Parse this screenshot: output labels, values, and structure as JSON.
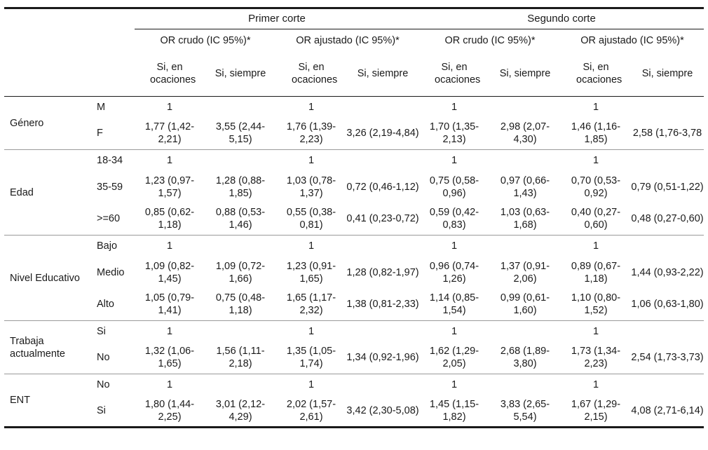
{
  "header": {
    "cortes": [
      "Primer corte",
      "Segundo corte"
    ],
    "measures": [
      "OR crudo (IC 95%)*",
      "OR ajustado (IC 95%)*",
      "OR crudo (IC 95%)*",
      "OR ajustado (IC 95%)*"
    ],
    "sub_a": "Si, en ocaciones",
    "sub_b": "Si, siempre"
  },
  "groups": [
    {
      "label": "Género",
      "rows": [
        {
          "cat": "M",
          "cells": [
            "1",
            "",
            "1",
            "",
            "1",
            "",
            "1",
            ""
          ]
        },
        {
          "cat": "F",
          "cells": [
            "1,77 (1,42-2,21)",
            "3,55 (2,44-5,15)",
            "1,76 (1,39-2,23)",
            "3,26 (2,19-4,84)",
            "1,70 (1,35-2,13)",
            "2,98 (2,07-4,30)",
            "1,46 (1,16-1,85)",
            "2,58 (1,76-3,78"
          ]
        }
      ]
    },
    {
      "label": "Edad",
      "rows": [
        {
          "cat": "18-34",
          "cells": [
            "1",
            "",
            "1",
            "",
            "1",
            "",
            "1",
            ""
          ]
        },
        {
          "cat": "35-59",
          "cells": [
            "1,23 (0,97-1,57)",
            "1,28 (0,88-1,85)",
            "1,03 (0,78-1,37)",
            "0,72 (0,46-1,12)",
            "0,75 (0,58-0,96)",
            "0,97 (0,66-1,43)",
            "0,70 (0,53-0,92)",
            "0,79 (0,51-1,22)"
          ]
        },
        {
          "cat": ">=60",
          "cells": [
            "0,85 (0,62-1,18)",
            "0,88 (0,53-1,46)",
            "0,55 (0,38-0,81)",
            "0,41 (0,23-0,72)",
            "0,59 (0,42-0,83)",
            "1,03 (0,63-1,68)",
            "0,40 (0,27-0,60)",
            "0,48 (0,27-0,60)"
          ]
        }
      ]
    },
    {
      "label": "Nivel Educativo",
      "rows": [
        {
          "cat": "Bajo",
          "cells": [
            "1",
            "",
            "1",
            "",
            "1",
            "",
            "1",
            ""
          ]
        },
        {
          "cat": "Medio",
          "cells": [
            "1,09 (0,82-1,45)",
            "1,09 (0,72-1,66)",
            "1,23 (0,91-1,65)",
            "1,28 (0,82-1,97)",
            "0,96 (0,74-1,26)",
            "1,37 (0,91-2,06)",
            "0,89 (0,67-1,18)",
            "1,44 (0,93-2,22)"
          ]
        },
        {
          "cat": "Alto",
          "cells": [
            "1,05 (0,79-1,41)",
            "0,75 (0,48-1,18)",
            "1,65 (1,17-2,32)",
            "1,38 (0,81-2,33)",
            "1,14 (0,85-1,54)",
            "0,99 (0,61-1,60)",
            "1,10 (0,80-1,52)",
            "1,06 (0,63-1,80)"
          ]
        }
      ]
    },
    {
      "label": "Trabaja actualmente",
      "rows": [
        {
          "cat": "Si",
          "cells": [
            "1",
            "",
            "1",
            "",
            "1",
            "",
            "1",
            ""
          ]
        },
        {
          "cat": "No",
          "cells": [
            "1,32 (1,06-1,65)",
            "1,56 (1,11-2,18)",
            "1,35 (1,05-1,74)",
            "1,34 (0,92-1,96)",
            "1,62 (1,29-2,05)",
            "2,68 (1,89-3,80)",
            "1,73 (1,34-2,23)",
            "2,54 (1,73-3,73)"
          ]
        }
      ]
    },
    {
      "label": "ENT",
      "rows": [
        {
          "cat": "No",
          "cells": [
            "1",
            "",
            "1",
            "",
            "1",
            "",
            "1",
            ""
          ]
        },
        {
          "cat": "Si",
          "cells": [
            "1,80 (1,44-2,25)",
            "3,01 (2,12-4,29)",
            "2,02 (1,57-2,61)",
            "3,42 (2,30-5,08)",
            "1,45 (1,15-1,82)",
            "3,83 (2,65-5,54)",
            "1,67 (1,29-2,15)",
            "4,08 (2,71-6,14)"
          ]
        }
      ]
    }
  ]
}
